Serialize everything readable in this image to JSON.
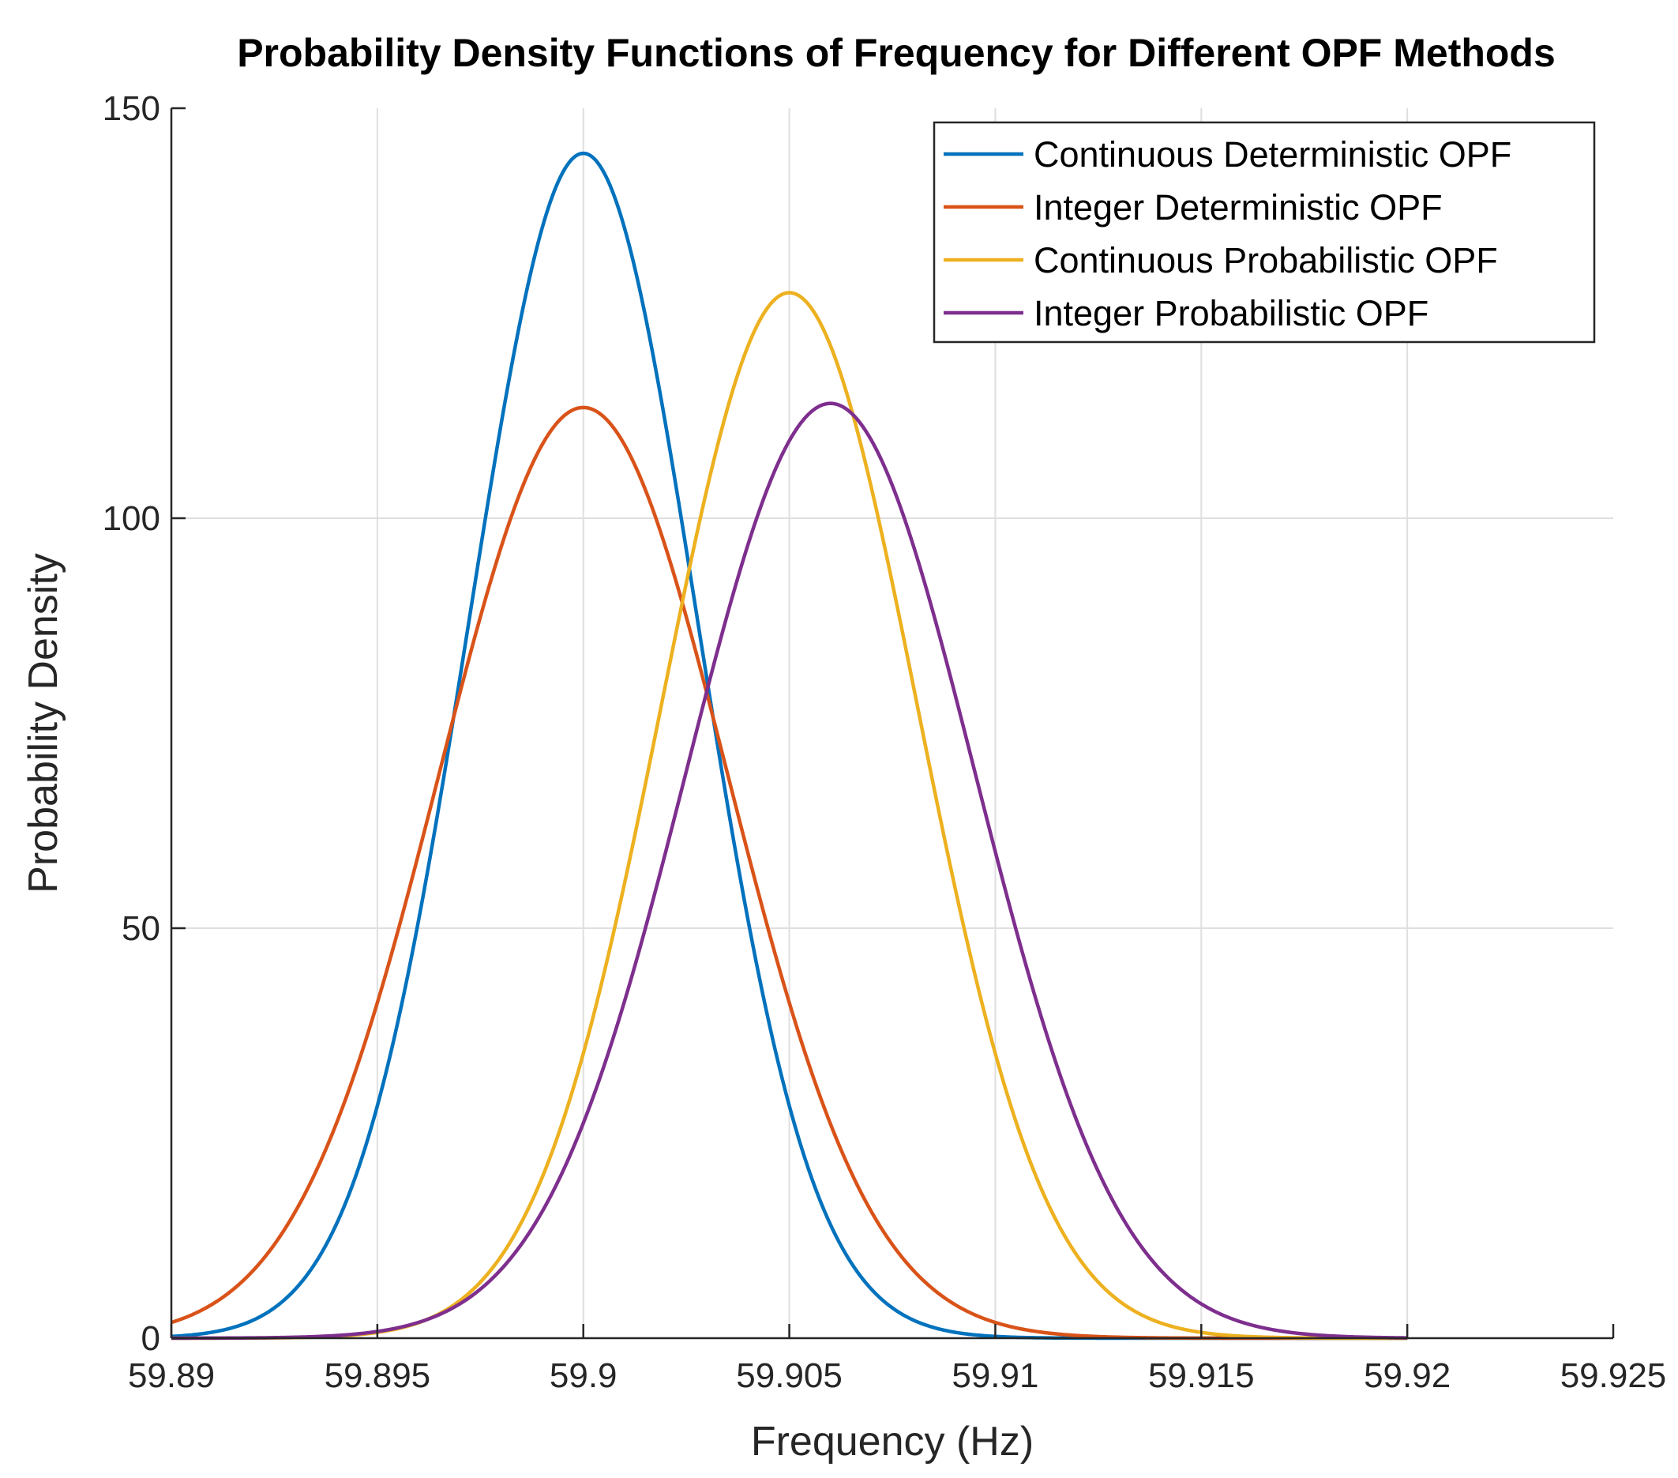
{
  "chart_data": {
    "type": "line",
    "title": "Probability Density Functions of Frequency for Different OPF Methods",
    "xlabel": "Frequency (Hz)",
    "ylabel": "Probability Density",
    "xlim": [
      59.89,
      59.925
    ],
    "ylim": [
      0,
      150
    ],
    "x_range_plotted": [
      59.89,
      59.92
    ],
    "xticks": [
      59.89,
      59.895,
      59.9,
      59.905,
      59.91,
      59.915,
      59.92,
      59.925
    ],
    "xtick_labels": [
      "59.89",
      "59.895",
      "59.9",
      "59.905",
      "59.91",
      "59.915",
      "59.92",
      "59.925"
    ],
    "yticks": [
      0,
      50,
      100,
      150
    ],
    "ytick_labels": [
      "0",
      "50",
      "100",
      "150"
    ],
    "grid": true,
    "legend_position": "top-right",
    "series": [
      {
        "name": "Continuous Deterministic OPF",
        "color": "#0072BD",
        "mean": 59.9,
        "std": 0.00277,
        "peak": 144.5
      },
      {
        "name": "Integer Deterministic OPF",
        "color": "#D95319",
        "mean": 59.9,
        "std": 0.0035,
        "peak": 113.5
      },
      {
        "name": "Continuous Probabilistic OPF",
        "color": "#EDB120",
        "mean": 59.905,
        "std": 0.0031,
        "peak": 127.5
      },
      {
        "name": "Integer Probabilistic OPF",
        "color": "#7E2F8E",
        "mean": 59.906,
        "std": 0.0035,
        "peak": 114
      }
    ]
  }
}
